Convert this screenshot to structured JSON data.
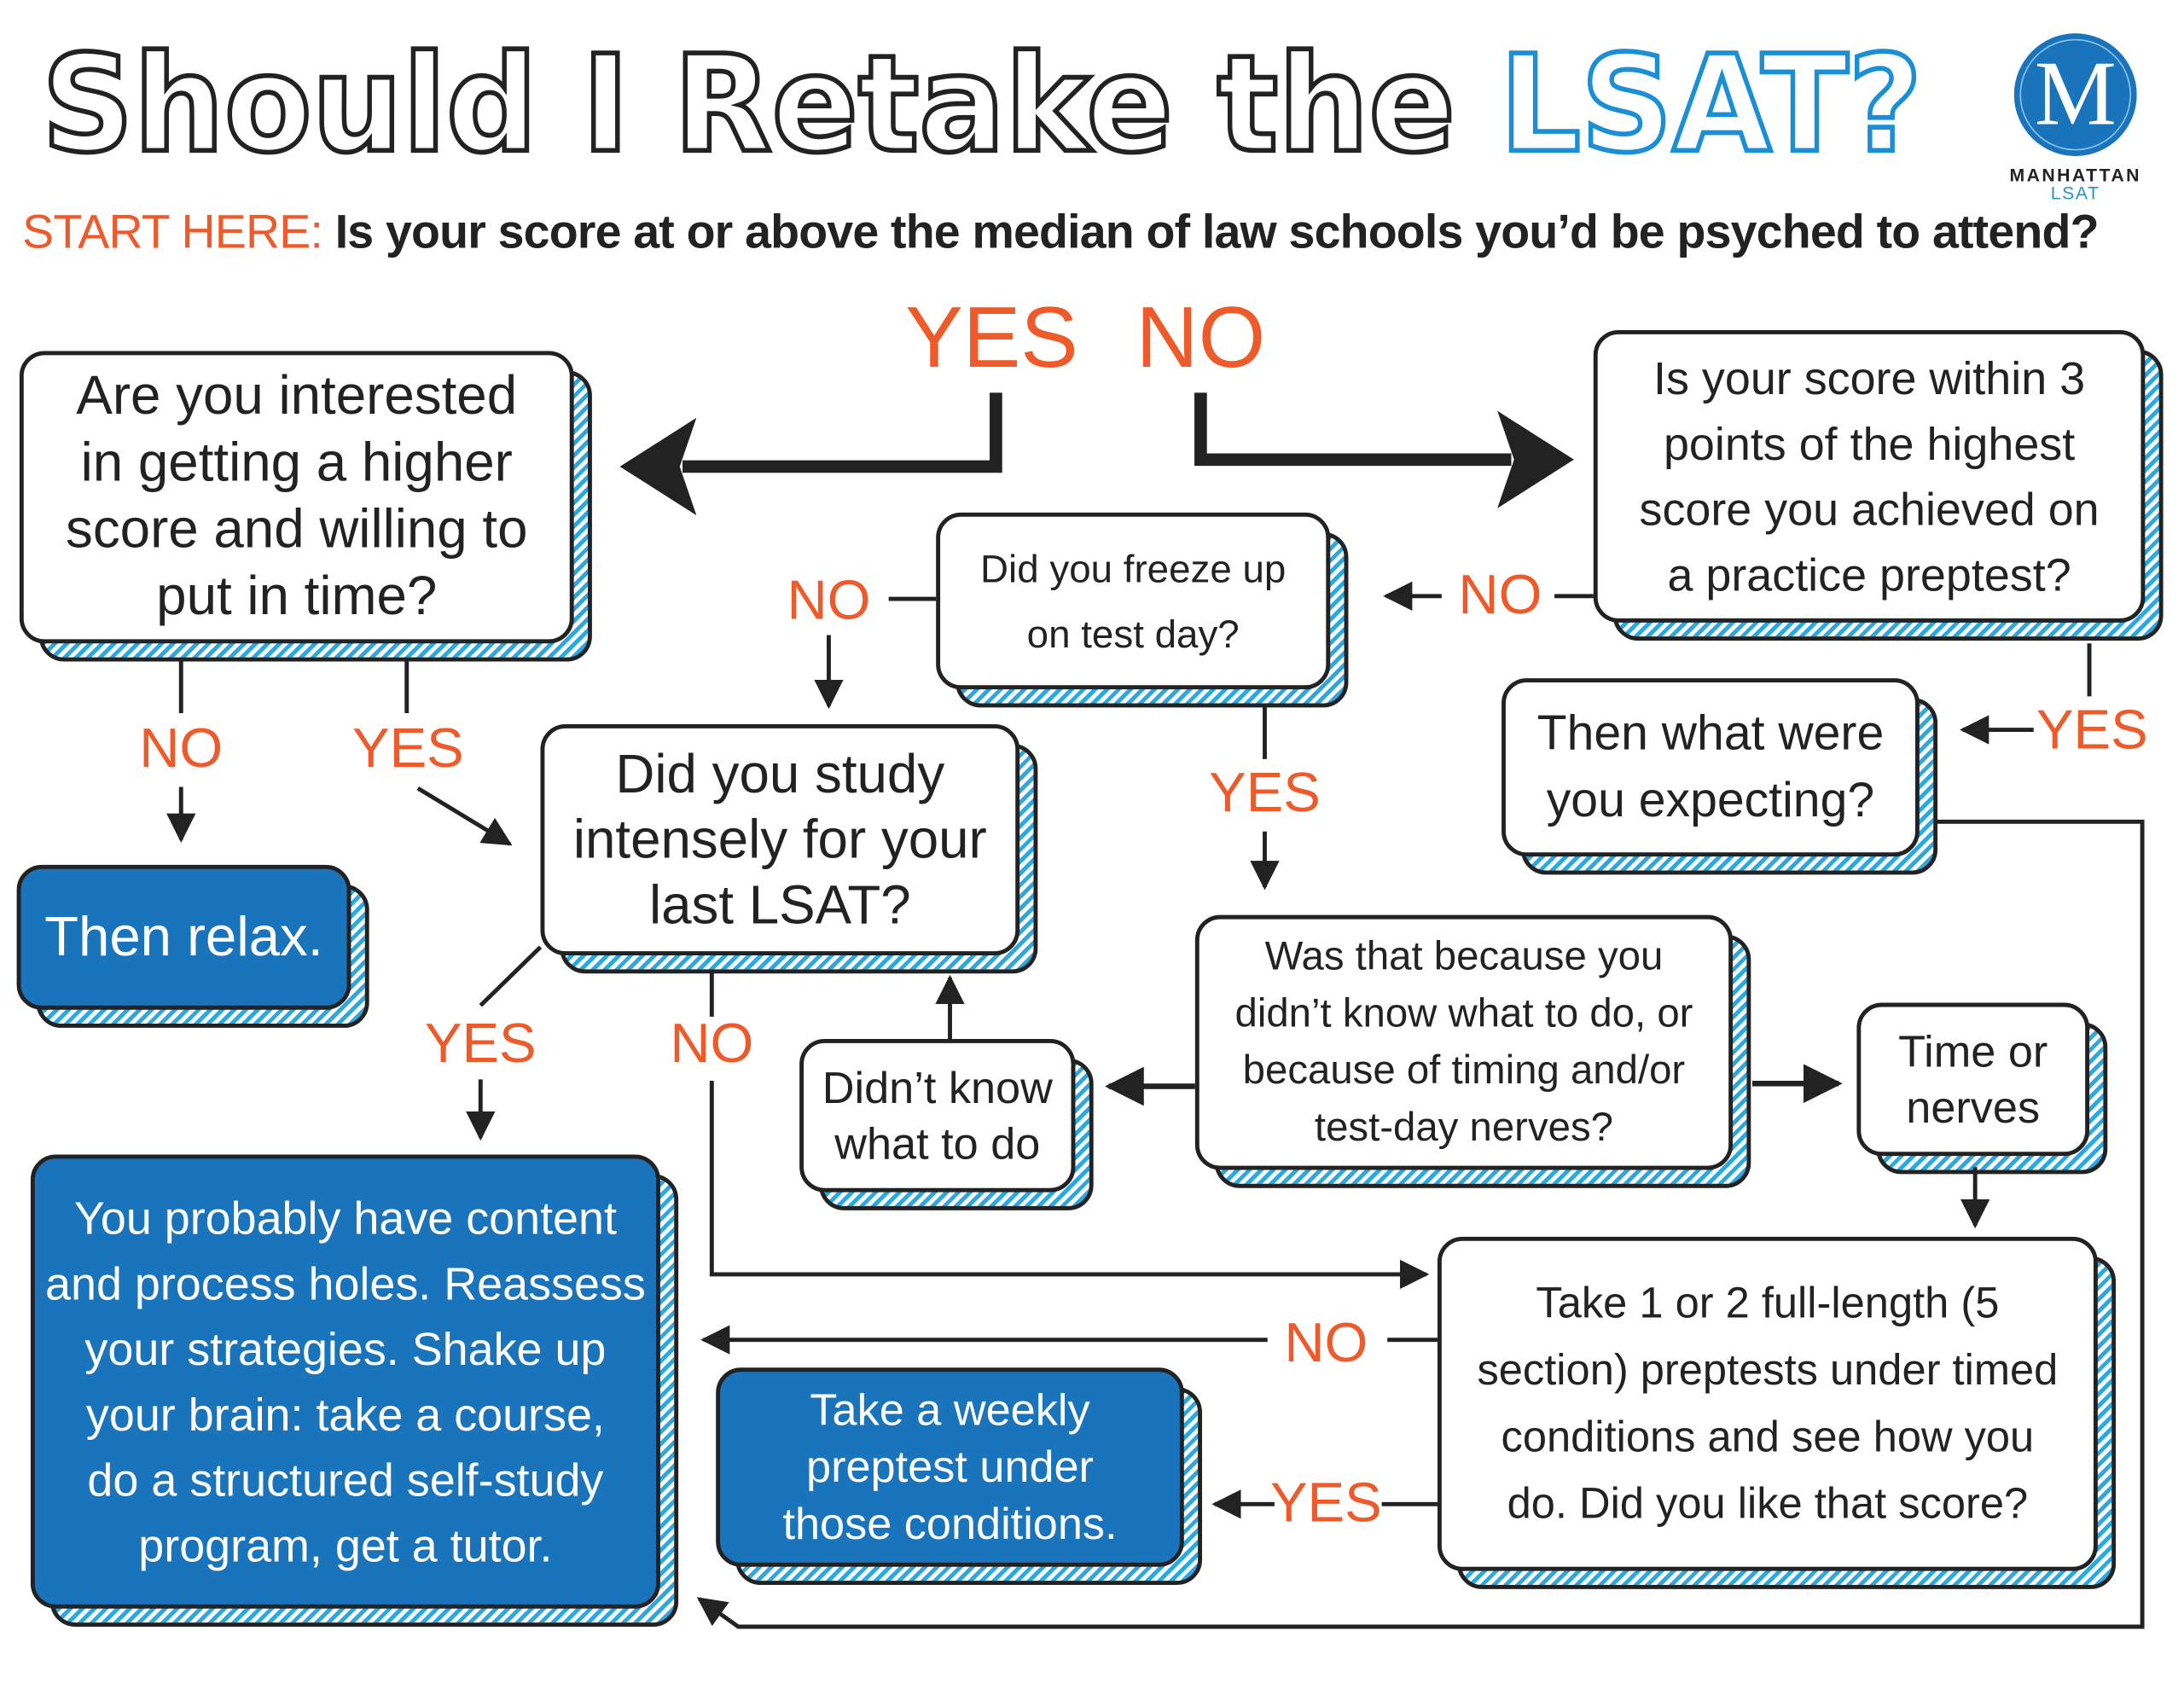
{
  "title": {
    "main": "Should I Retake the ",
    "accent": "LSAT?"
  },
  "logo": {
    "letter": "M",
    "name": "MANHATTAN",
    "sub": "LSAT"
  },
  "start": {
    "label": "START HERE:",
    "question": "Is your score at or above the median of law schools you’d be psyched to attend?"
  },
  "answers": {
    "yes": "YES",
    "no": "NO"
  },
  "nodes": {
    "interested": "Are you interested\nin getting a higher\nscore and willing to\nput in time?",
    "within3": "Is your score within 3\npoints of the highest\nscore you achieved on\na practice preptest?",
    "freeze": "Did you freeze up\non test day?",
    "expecting": "Then what were\nyou expecting?",
    "study": "Did you study\nintensely for your\nlast LSAT?",
    "relax": "Then relax.",
    "because": "Was that because you\ndidn’t know what to do, or\nbecause of timing and/or\ntest-day nerves?",
    "didnt_know": "Didn’t know\nwhat to do",
    "time_nerves": "Time or\nnerves",
    "holes": "You probably have content\nand process holes. Reassess\nyour strategies. Shake up\nyour brain: take a course,\ndo a structured self-study\nprogram, get a tutor.",
    "weekly": "Take a weekly\npreptest under\nthose conditions.",
    "full_length": "Take 1 or 2 full-length (5\nsection) preptests under timed\nconditions and see how you\ndo. Did you like that score?"
  },
  "colors": {
    "orange": "#ee5a2a",
    "blue": "#1a74bb",
    "stripe": "#2aa8e0",
    "ink": "#222222"
  }
}
